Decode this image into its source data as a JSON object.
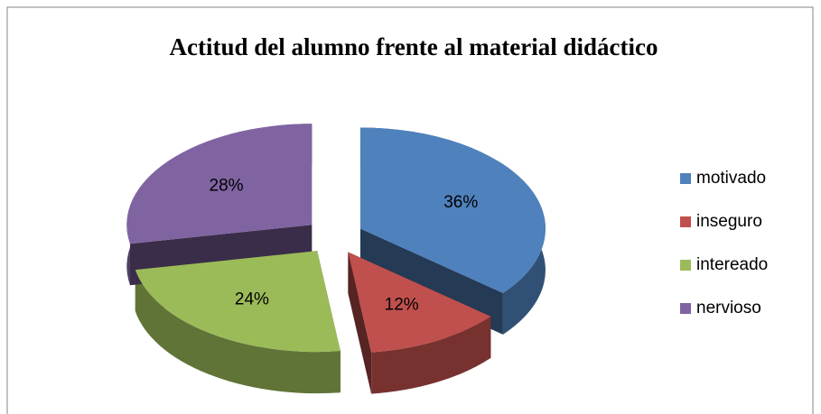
{
  "chart_data": {
    "type": "pie3d",
    "title": "Actitud del alumno frente al material didáctico",
    "categories": [
      "motivado",
      "inseguro",
      "intereado",
      "nervioso"
    ],
    "values": [
      36,
      12,
      24,
      28
    ],
    "value_labels": [
      "36%",
      "12%",
      "24%",
      "28%"
    ],
    "colors": [
      "#4f81bd",
      "#c0504d",
      "#9bbb59",
      "#8064a2"
    ],
    "legend": "right"
  }
}
